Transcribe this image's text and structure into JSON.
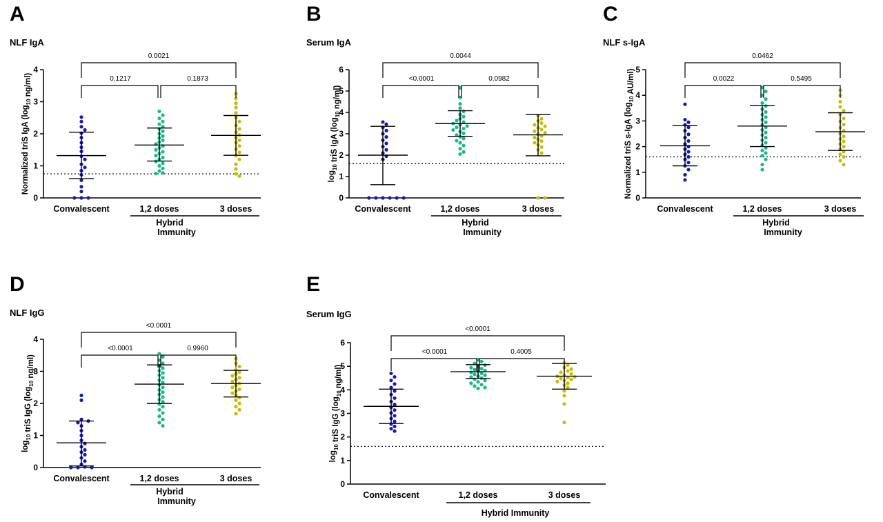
{
  "colors": {
    "convalescent": "#1a1aa8",
    "doses12": "#1db589",
    "doses3": "#c2bd0e",
    "axis": "#000000"
  },
  "chart_data": [
    {
      "id": "A",
      "type": "scatter",
      "panel_letter": "A",
      "title": "NLF IgA",
      "ylabel": "Normalized triS IgA (log",
      "ylabel_sub": "10",
      "ylabel_suffix": " ng/ml)",
      "ylim": [
        0,
        4
      ],
      "yticks": [
        0,
        1,
        2,
        3,
        4
      ],
      "categories": [
        "Convalescent",
        "1,2 doses",
        "3 doses"
      ],
      "group_label_lines": [
        "Hybrid",
        "Immunity"
      ],
      "threshold": 0.75,
      "series": [
        {
          "category": "Convalescent",
          "mean": 1.32,
          "sd_low": 0.6,
          "sd_high": 2.05,
          "values": [
            2.52,
            2.38,
            2.22,
            2.12,
            2.02,
            1.88,
            1.72,
            1.58,
            1.45,
            1.3,
            1.2,
            1.05,
            0.95,
            0.85,
            0.72,
            0.55,
            0.35,
            0.2,
            0.0,
            0.0,
            0.0
          ]
        },
        {
          "category": "1,2 doses",
          "mean": 1.65,
          "sd_low": 1.15,
          "sd_high": 2.18,
          "values": [
            2.7,
            2.58,
            2.48,
            2.38,
            2.3,
            2.22,
            2.15,
            2.08,
            2.0,
            1.93,
            1.87,
            1.8,
            1.74,
            1.68,
            1.62,
            1.56,
            1.5,
            1.44,
            1.38,
            1.32,
            1.26,
            1.2,
            1.14,
            1.08,
            1.0,
            0.92,
            0.84,
            0.78,
            0.76
          ]
        },
        {
          "category": "3 doses",
          "mean": 1.95,
          "sd_low": 1.33,
          "sd_high": 2.57,
          "values": [
            3.25,
            3.1,
            2.95,
            2.82,
            2.65,
            2.5,
            2.38,
            2.26,
            2.15,
            2.05,
            1.96,
            1.88,
            1.8,
            1.72,
            1.62,
            1.52,
            1.42,
            1.32,
            1.2,
            1.05,
            0.9,
            0.75,
            0.68
          ]
        }
      ],
      "comparisons": [
        {
          "from": 0,
          "to": 1,
          "label": "0.1217",
          "level": 1
        },
        {
          "from": 1,
          "to": 2,
          "label": "0.1873",
          "level": 1
        },
        {
          "from": 0,
          "to": 2,
          "label": "0.0021",
          "level": 2
        }
      ]
    },
    {
      "id": "B",
      "type": "scatter",
      "panel_letter": "B",
      "title": "Serum IgA",
      "ylabel": "log",
      "ylabel_sub": "10",
      "ylabel_suffix": " triS IgA (log",
      "ylabel_sub2": "10",
      "ylabel_suffix2": " ng/ml)",
      "ylim": [
        0,
        6
      ],
      "yticks": [
        0,
        1,
        2,
        3,
        4,
        5,
        6
      ],
      "categories": [
        "Convalescent",
        "1,2 doses",
        "3 doses"
      ],
      "group_label_lines": [
        "Hybrid",
        "Immunity"
      ],
      "threshold": 1.6,
      "series": [
        {
          "category": "Convalescent",
          "mean": 2.0,
          "sd_low": 0.62,
          "sd_high": 3.35,
          "values": [
            3.55,
            3.45,
            3.3,
            3.15,
            3.0,
            2.85,
            2.7,
            2.55,
            2.4,
            2.25,
            2.1,
            1.95,
            1.8,
            0.0,
            0.0,
            0.0,
            0.0,
            0.0,
            0.0
          ]
        },
        {
          "category": "1,2 doses",
          "mean": 3.48,
          "sd_low": 2.88,
          "sd_high": 4.08,
          "values": [
            5.15,
            4.7,
            4.4,
            4.2,
            4.05,
            3.9,
            3.8,
            3.7,
            3.62,
            3.55,
            3.48,
            3.42,
            3.36,
            3.3,
            3.24,
            3.18,
            3.1,
            3.02,
            2.94,
            2.86,
            2.78,
            2.68,
            2.58,
            2.45,
            2.3,
            2.15,
            2.05
          ]
        },
        {
          "category": "3 doses",
          "mean": 2.95,
          "sd_low": 1.97,
          "sd_high": 3.9,
          "values": [
            3.85,
            3.7,
            3.6,
            3.5,
            3.42,
            3.35,
            3.28,
            3.2,
            3.12,
            3.05,
            2.98,
            2.9,
            2.82,
            2.74,
            2.66,
            2.58,
            2.48,
            2.38,
            2.25,
            2.1,
            0.0,
            0.0
          ]
        }
      ],
      "comparisons": [
        {
          "from": 0,
          "to": 1,
          "label": "<0.0001",
          "level": 1
        },
        {
          "from": 1,
          "to": 2,
          "label": "0.0982",
          "level": 1
        },
        {
          "from": 0,
          "to": 2,
          "label": "0.0044",
          "level": 2
        }
      ]
    },
    {
      "id": "C",
      "type": "scatter",
      "panel_letter": "C",
      "title": "NLF s-IgA",
      "ylabel": "Normalized triS s-IgA (log",
      "ylabel_sub": "10",
      "ylabel_suffix": " AU/ml)",
      "ylim": [
        0,
        5
      ],
      "yticks": [
        0,
        1,
        2,
        3,
        4,
        5
      ],
      "categories": [
        "Convalescent",
        "1,2 doses",
        "3 doses"
      ],
      "group_label_lines": [
        "Hybrid",
        "Immunity"
      ],
      "threshold": 1.6,
      "series": [
        {
          "category": "Convalescent",
          "mean": 2.03,
          "sd_low": 1.25,
          "sd_high": 2.82,
          "values": [
            3.65,
            3.05,
            2.95,
            2.85,
            2.75,
            2.62,
            2.48,
            2.35,
            2.22,
            2.1,
            2.0,
            1.9,
            1.8,
            1.7,
            1.6,
            1.5,
            1.38,
            1.25,
            1.1,
            0.9,
            0.7
          ]
        },
        {
          "category": "1,2 doses",
          "mean": 2.8,
          "sd_low": 2.0,
          "sd_high": 3.6,
          "values": [
            4.3,
            4.15,
            4.0,
            3.85,
            3.7,
            3.58,
            3.46,
            3.35,
            3.25,
            3.15,
            3.05,
            2.95,
            2.85,
            2.75,
            2.65,
            2.55,
            2.45,
            2.35,
            2.25,
            2.15,
            2.05,
            1.95,
            1.85,
            1.75,
            1.65,
            1.5,
            1.3,
            1.1
          ]
        },
        {
          "category": "3 doses",
          "mean": 2.58,
          "sd_low": 1.85,
          "sd_high": 3.32,
          "values": [
            4.2,
            4.0,
            3.75,
            3.55,
            3.4,
            3.25,
            3.1,
            2.98,
            2.86,
            2.74,
            2.62,
            2.5,
            2.4,
            2.3,
            2.2,
            2.1,
            2.0,
            1.9,
            1.8,
            1.7,
            1.6,
            1.45,
            1.3
          ]
        }
      ],
      "comparisons": [
        {
          "from": 0,
          "to": 1,
          "label": "0.0022",
          "level": 1
        },
        {
          "from": 1,
          "to": 2,
          "label": "0.5495",
          "level": 1
        },
        {
          "from": 0,
          "to": 2,
          "label": "0.0462",
          "level": 2
        }
      ]
    },
    {
      "id": "D",
      "type": "scatter",
      "panel_letter": "D",
      "title": "NLF IgG",
      "ylabel": "log",
      "ylabel_sub": "10",
      "ylabel_suffix": " triS IgG (log",
      "ylabel_sub2": "10",
      "ylabel_suffix2": " ng/ml)",
      "ylim": [
        0,
        4
      ],
      "yticks": [
        0,
        1,
        2,
        3,
        4
      ],
      "categories": [
        "Convalescent",
        "1,2 doses",
        "3 doses"
      ],
      "group_label_lines": [
        "Hybrid",
        "Immunity"
      ],
      "threshold": null,
      "series": [
        {
          "category": "Convalescent",
          "mean": 0.77,
          "sd_low": 0.05,
          "sd_high": 1.45,
          "values": [
            2.25,
            2.1,
            1.5,
            1.45,
            1.4,
            1.3,
            1.15,
            1.0,
            0.85,
            0.75,
            0.65,
            0.55,
            0.48,
            0.4,
            0.3,
            0.2,
            0.1,
            0.02,
            0.0,
            0.0,
            0.0
          ]
        },
        {
          "category": "1,2 doses",
          "mean": 2.6,
          "sd_low": 2.0,
          "sd_high": 3.2,
          "values": [
            3.55,
            3.45,
            3.35,
            3.25,
            3.18,
            3.1,
            3.02,
            2.95,
            2.88,
            2.8,
            2.72,
            2.65,
            2.58,
            2.5,
            2.42,
            2.35,
            2.28,
            2.2,
            2.12,
            2.05,
            1.98,
            1.9,
            1.8,
            1.7,
            1.6,
            1.5,
            1.4,
            1.3
          ]
        },
        {
          "category": "3 doses",
          "mean": 2.62,
          "sd_low": 2.2,
          "sd_high": 3.03,
          "values": [
            3.4,
            3.25,
            3.15,
            3.05,
            2.98,
            2.92,
            2.86,
            2.8,
            2.74,
            2.68,
            2.62,
            2.56,
            2.5,
            2.44,
            2.38,
            2.32,
            2.25,
            2.18,
            2.1,
            2.0,
            1.9,
            1.8,
            1.68
          ]
        }
      ],
      "comparisons": [
        {
          "from": 0,
          "to": 1,
          "label": "<0.0001",
          "level": 1
        },
        {
          "from": 1,
          "to": 2,
          "label": "0.9960",
          "level": 1
        },
        {
          "from": 0,
          "to": 2,
          "label": "<0.0001",
          "level": 2
        }
      ]
    },
    {
      "id": "E",
      "type": "scatter",
      "panel_letter": "E",
      "title": "Serum IgG",
      "ylabel": "log",
      "ylabel_sub": "10",
      "ylabel_suffix": " triS IgG (log",
      "ylabel_sub2": "10",
      "ylabel_suffix2": " ng/ml)",
      "ylim": [
        0,
        6
      ],
      "yticks": [
        0,
        1,
        2,
        3,
        4,
        5,
        6
      ],
      "categories": [
        "Convalescent",
        "1,2 doses",
        "3 doses"
      ],
      "group_label_lines": [
        "Hybrid Immunity"
      ],
      "threshold": 1.6,
      "series": [
        {
          "category": "Convalescent",
          "mean": 3.3,
          "sd_low": 2.57,
          "sd_high": 4.03,
          "values": [
            4.7,
            4.55,
            4.4,
            4.25,
            4.1,
            3.95,
            3.8,
            3.65,
            3.5,
            3.38,
            3.26,
            3.14,
            3.02,
            2.9,
            2.78,
            2.66,
            2.55,
            2.45,
            2.35,
            2.25
          ]
        },
        {
          "category": "1,2 doses",
          "mean": 4.77,
          "sd_low": 4.48,
          "sd_high": 5.07,
          "values": [
            5.28,
            5.2,
            5.12,
            5.05,
            4.98,
            4.94,
            4.9,
            4.86,
            4.82,
            4.78,
            4.74,
            4.7,
            4.66,
            4.62,
            4.58,
            4.54,
            4.5,
            4.45,
            4.4,
            4.34,
            4.28,
            4.22,
            4.16,
            4.1,
            4.06
          ]
        },
        {
          "category": "3 doses",
          "mean": 4.58,
          "sd_low": 4.03,
          "sd_high": 5.12,
          "values": [
            5.15,
            5.05,
            4.95,
            4.88,
            4.8,
            4.74,
            4.68,
            4.62,
            4.58,
            4.55,
            4.52,
            4.48,
            4.44,
            4.4,
            4.35,
            4.28,
            4.2,
            4.1,
            3.95,
            3.75,
            3.4,
            2.62
          ]
        }
      ],
      "comparisons": [
        {
          "from": 0,
          "to": 1,
          "label": "<0.0001",
          "level": 1
        },
        {
          "from": 1,
          "to": 2,
          "label": "0.4005",
          "level": 1
        },
        {
          "from": 0,
          "to": 2,
          "label": "<0.0001",
          "level": 2
        }
      ]
    }
  ]
}
